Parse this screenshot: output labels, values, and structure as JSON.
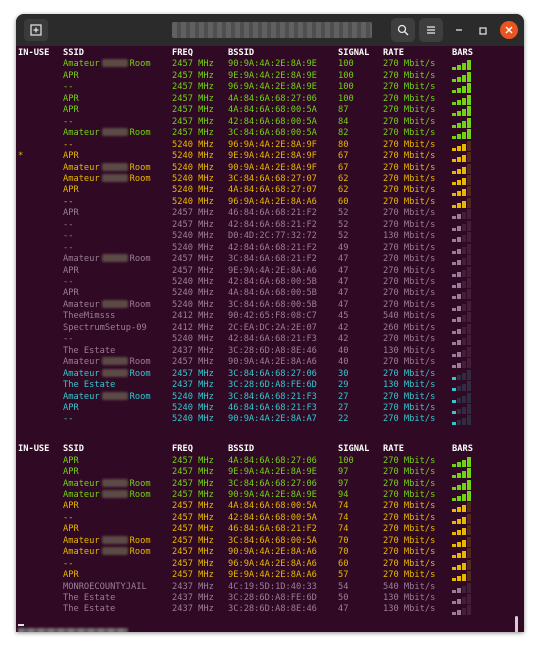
{
  "colors": {
    "background": "#300a24",
    "strong": "#73d216",
    "medium": "#e8b800",
    "weak": "#9c7d99",
    "very_weak": "#34c6cf"
  },
  "icons": {
    "new_tab": "tab-plus-icon",
    "search": "search-icon",
    "menu": "hamburger-menu-icon",
    "minimize": "minimize-icon",
    "maximize": "maximize-icon",
    "close": "close-icon"
  },
  "headers": {
    "in_use": "IN-USE",
    "ssid": "SSID",
    "freq": "FREQ",
    "bssid": "BSSID",
    "signal": "SIGNAL",
    "rate": "RATE",
    "bars": "BARS"
  },
  "scan1": [
    {
      "in_use": "",
      "ssid_a": "Amateur",
      "ssid_b": "Room",
      "redacted": true,
      "freq": "2457 MHz",
      "bssid": "90:9A:4A:2E:8A:9E",
      "signal": "100",
      "rate": "270 Mbit/s",
      "bars": 4,
      "color": "g"
    },
    {
      "in_use": "",
      "ssid_a": "APR",
      "ssid_b": "",
      "redacted": false,
      "freq": "2457 MHz",
      "bssid": "9E:9A:4A:2E:8A:9E",
      "signal": "100",
      "rate": "270 Mbit/s",
      "bars": 4,
      "color": "g"
    },
    {
      "in_use": "",
      "ssid_a": "--",
      "ssid_b": "",
      "redacted": false,
      "freq": "2457 MHz",
      "bssid": "96:9A:4A:2E:8A:9E",
      "signal": "100",
      "rate": "270 Mbit/s",
      "bars": 4,
      "color": "g"
    },
    {
      "in_use": "",
      "ssid_a": "APR",
      "ssid_b": "",
      "redacted": false,
      "freq": "2457 MHz",
      "bssid": "4A:84:6A:68:27:06",
      "signal": "100",
      "rate": "270 Mbit/s",
      "bars": 4,
      "color": "g"
    },
    {
      "in_use": "",
      "ssid_a": "APR",
      "ssid_b": "",
      "redacted": false,
      "freq": "2457 MHz",
      "bssid": "4A:84:6A:68:00:5A",
      "signal": "87",
      "rate": "270 Mbit/s",
      "bars": 4,
      "color": "g"
    },
    {
      "in_use": "",
      "ssid_a": "--",
      "ssid_b": "",
      "redacted": false,
      "freq": "2457 MHz",
      "bssid": "42:84:6A:68:00:5A",
      "signal": "84",
      "rate": "270 Mbit/s",
      "bars": 4,
      "color": "g"
    },
    {
      "in_use": "",
      "ssid_a": "Amateur",
      "ssid_b": "Room",
      "redacted": true,
      "freq": "2457 MHz",
      "bssid": "3C:84:6A:68:00:5A",
      "signal": "82",
      "rate": "270 Mbit/s",
      "bars": 4,
      "color": "g"
    },
    {
      "in_use": "",
      "ssid_a": "--",
      "ssid_b": "",
      "redacted": false,
      "freq": "5240 MHz",
      "bssid": "96:9A:4A:2E:8A:9F",
      "signal": "80",
      "rate": "270 Mbit/s",
      "bars": 3,
      "color": "y"
    },
    {
      "in_use": "*",
      "ssid_a": "APR",
      "ssid_b": "",
      "redacted": false,
      "freq": "5240 MHz",
      "bssid": "9E:9A:4A:2E:8A:9F",
      "signal": "67",
      "rate": "270 Mbit/s",
      "bars": 3,
      "color": "y"
    },
    {
      "in_use": "",
      "ssid_a": "Amateur",
      "ssid_b": "Room",
      "redacted": true,
      "freq": "5240 MHz",
      "bssid": "90:9A:4A:2E:8A:9F",
      "signal": "67",
      "rate": "270 Mbit/s",
      "bars": 3,
      "color": "y"
    },
    {
      "in_use": "",
      "ssid_a": "Amateur",
      "ssid_b": "Room",
      "redacted": true,
      "freq": "5240 MHz",
      "bssid": "3C:84:6A:68:27:07",
      "signal": "62",
      "rate": "270 Mbit/s",
      "bars": 3,
      "color": "y"
    },
    {
      "in_use": "",
      "ssid_a": "APR",
      "ssid_b": "",
      "redacted": false,
      "freq": "5240 MHz",
      "bssid": "4A:84:6A:68:27:07",
      "signal": "62",
      "rate": "270 Mbit/s",
      "bars": 3,
      "color": "y"
    },
    {
      "in_use": "",
      "ssid_a": "--",
      "ssid_b": "",
      "redacted": false,
      "freq": "5240 MHz",
      "bssid": "96:9A:4A:2E:8A:A6",
      "signal": "60",
      "rate": "270 Mbit/s",
      "bars": 3,
      "color": "y"
    },
    {
      "in_use": "",
      "ssid_a": "APR",
      "ssid_b": "",
      "redacted": false,
      "freq": "2457 MHz",
      "bssid": "46:84:6A:68:21:F2",
      "signal": "52",
      "rate": "270 Mbit/s",
      "bars": 2,
      "color": "m"
    },
    {
      "in_use": "",
      "ssid_a": "--",
      "ssid_b": "",
      "redacted": false,
      "freq": "2457 MHz",
      "bssid": "42:84:6A:68:21:F2",
      "signal": "52",
      "rate": "270 Mbit/s",
      "bars": 2,
      "color": "m"
    },
    {
      "in_use": "",
      "ssid_a": "--",
      "ssid_b": "",
      "redacted": false,
      "freq": "5240 MHz",
      "bssid": "D0:4D:2C:77:32:72",
      "signal": "52",
      "rate": "130 Mbit/s",
      "bars": 2,
      "color": "m"
    },
    {
      "in_use": "",
      "ssid_a": "--",
      "ssid_b": "",
      "redacted": false,
      "freq": "5240 MHz",
      "bssid": "42:84:6A:68:21:F2",
      "signal": "49",
      "rate": "270 Mbit/s",
      "bars": 2,
      "color": "m"
    },
    {
      "in_use": "",
      "ssid_a": "Amateur",
      "ssid_b": "Room",
      "redacted": true,
      "freq": "2457 MHz",
      "bssid": "3C:84:6A:68:21:F2",
      "signal": "47",
      "rate": "270 Mbit/s",
      "bars": 2,
      "color": "m"
    },
    {
      "in_use": "",
      "ssid_a": "APR",
      "ssid_b": "",
      "redacted": false,
      "freq": "2457 MHz",
      "bssid": "9E:9A:4A:2E:8A:A6",
      "signal": "47",
      "rate": "270 Mbit/s",
      "bars": 2,
      "color": "m"
    },
    {
      "in_use": "",
      "ssid_a": "--",
      "ssid_b": "",
      "redacted": false,
      "freq": "5240 MHz",
      "bssid": "42:84:6A:68:00:5B",
      "signal": "47",
      "rate": "270 Mbit/s",
      "bars": 2,
      "color": "m"
    },
    {
      "in_use": "",
      "ssid_a": "APR",
      "ssid_b": "",
      "redacted": false,
      "freq": "5240 MHz",
      "bssid": "4A:84:6A:68:00:5B",
      "signal": "47",
      "rate": "270 Mbit/s",
      "bars": 2,
      "color": "m"
    },
    {
      "in_use": "",
      "ssid_a": "Amateur",
      "ssid_b": "Room",
      "redacted": true,
      "freq": "5240 MHz",
      "bssid": "3C:84:6A:68:00:5B",
      "signal": "47",
      "rate": "270 Mbit/s",
      "bars": 2,
      "color": "m"
    },
    {
      "in_use": "",
      "ssid_a": "TheeMimsss",
      "ssid_b": "",
      "redacted": false,
      "freq": "2412 MHz",
      "bssid": "90:42:65:F8:08:C7",
      "signal": "45",
      "rate": "540 Mbit/s",
      "bars": 2,
      "color": "m"
    },
    {
      "in_use": "",
      "ssid_a": "SpectrumSetup-09",
      "ssid_b": "",
      "redacted": false,
      "freq": "2412 MHz",
      "bssid": "2C:EA:DC:2A:2E:07",
      "signal": "42",
      "rate": "260 Mbit/s",
      "bars": 2,
      "color": "m"
    },
    {
      "in_use": "",
      "ssid_a": "--",
      "ssid_b": "",
      "redacted": false,
      "freq": "5240 MHz",
      "bssid": "42:84:6A:68:21:F3",
      "signal": "42",
      "rate": "270 Mbit/s",
      "bars": 2,
      "color": "m"
    },
    {
      "in_use": "",
      "ssid_a": "The Estate",
      "ssid_b": "",
      "redacted": false,
      "freq": "2437 MHz",
      "bssid": "3C:28:6D:A8:8E:46",
      "signal": "40",
      "rate": "130 Mbit/s",
      "bars": 2,
      "color": "m"
    },
    {
      "in_use": "",
      "ssid_a": "Amateur",
      "ssid_b": "Room",
      "redacted": true,
      "freq": "2457 MHz",
      "bssid": "90:9A:4A:2E:8A:A6",
      "signal": "40",
      "rate": "270 Mbit/s",
      "bars": 2,
      "color": "m"
    },
    {
      "in_use": "",
      "ssid_a": "Amateur",
      "ssid_b": "Room",
      "redacted": true,
      "freq": "2457 MHz",
      "bssid": "3C:84:6A:68:27:06",
      "signal": "30",
      "rate": "270 Mbit/s",
      "bars": 1,
      "color": "cy"
    },
    {
      "in_use": "",
      "ssid_a": "The Estate",
      "ssid_b": "",
      "redacted": false,
      "freq": "2437 MHz",
      "bssid": "3C:28:6D:A8:FE:6D",
      "signal": "29",
      "rate": "130 Mbit/s",
      "bars": 1,
      "color": "cy"
    },
    {
      "in_use": "",
      "ssid_a": "Amateur",
      "ssid_b": "Room",
      "redacted": true,
      "freq": "5240 MHz",
      "bssid": "3C:84:6A:68:21:F3",
      "signal": "27",
      "rate": "270 Mbit/s",
      "bars": 1,
      "color": "cy"
    },
    {
      "in_use": "",
      "ssid_a": "APR",
      "ssid_b": "",
      "redacted": false,
      "freq": "5240 MHz",
      "bssid": "46:84:6A:68:21:F3",
      "signal": "27",
      "rate": "270 Mbit/s",
      "bars": 1,
      "color": "cy"
    },
    {
      "in_use": "",
      "ssid_a": "--",
      "ssid_b": "",
      "redacted": false,
      "freq": "5240 MHz",
      "bssid": "90:9A:4A:2E:8A:A7",
      "signal": "22",
      "rate": "270 Mbit/s",
      "bars": 1,
      "color": "cy"
    }
  ],
  "scan2": [
    {
      "in_use": "",
      "ssid_a": "APR",
      "ssid_b": "",
      "redacted": false,
      "freq": "2457 MHz",
      "bssid": "4A:84:6A:68:27:06",
      "signal": "100",
      "rate": "270 Mbit/s",
      "bars": 4,
      "color": "g"
    },
    {
      "in_use": "",
      "ssid_a": "APR",
      "ssid_b": "",
      "redacted": false,
      "freq": "2457 MHz",
      "bssid": "9E:9A:4A:2E:8A:9E",
      "signal": "97",
      "rate": "270 Mbit/s",
      "bars": 4,
      "color": "g"
    },
    {
      "in_use": "",
      "ssid_a": "Amateur",
      "ssid_b": "Room",
      "redacted": true,
      "freq": "2457 MHz",
      "bssid": "3C:84:6A:68:27:06",
      "signal": "97",
      "rate": "270 Mbit/s",
      "bars": 4,
      "color": "g"
    },
    {
      "in_use": "",
      "ssid_a": "Amateur",
      "ssid_b": "Room",
      "redacted": true,
      "freq": "2457 MHz",
      "bssid": "90:9A:4A:2E:8A:9E",
      "signal": "94",
      "rate": "270 Mbit/s",
      "bars": 4,
      "color": "g"
    },
    {
      "in_use": "",
      "ssid_a": "APR",
      "ssid_b": "",
      "redacted": false,
      "freq": "2457 MHz",
      "bssid": "4A:84:6A:68:00:5A",
      "signal": "74",
      "rate": "270 Mbit/s",
      "bars": 3,
      "color": "y"
    },
    {
      "in_use": "",
      "ssid_a": "--",
      "ssid_b": "",
      "redacted": false,
      "freq": "2457 MHz",
      "bssid": "42:84:6A:68:00:5A",
      "signal": "74",
      "rate": "270 Mbit/s",
      "bars": 3,
      "color": "y"
    },
    {
      "in_use": "",
      "ssid_a": "APR",
      "ssid_b": "",
      "redacted": false,
      "freq": "2457 MHz",
      "bssid": "46:84:6A:68:21:F2",
      "signal": "74",
      "rate": "270 Mbit/s",
      "bars": 3,
      "color": "y"
    },
    {
      "in_use": "",
      "ssid_a": "Amateur",
      "ssid_b": "Room",
      "redacted": true,
      "freq": "2457 MHz",
      "bssid": "3C:84:6A:68:00:5A",
      "signal": "70",
      "rate": "270 Mbit/s",
      "bars": 3,
      "color": "y"
    },
    {
      "in_use": "",
      "ssid_a": "Amateur",
      "ssid_b": "Room",
      "redacted": true,
      "freq": "2457 MHz",
      "bssid": "90:9A:4A:2E:8A:A6",
      "signal": "70",
      "rate": "270 Mbit/s",
      "bars": 3,
      "color": "y"
    },
    {
      "in_use": "",
      "ssid_a": "--",
      "ssid_b": "",
      "redacted": false,
      "freq": "2457 MHz",
      "bssid": "96:9A:4A:2E:8A:A6",
      "signal": "60",
      "rate": "270 Mbit/s",
      "bars": 3,
      "color": "y"
    },
    {
      "in_use": "",
      "ssid_a": "APR",
      "ssid_b": "",
      "redacted": false,
      "freq": "2457 MHz",
      "bssid": "9E:9A:4A:2E:8A:A6",
      "signal": "57",
      "rate": "270 Mbit/s",
      "bars": 3,
      "color": "y"
    },
    {
      "in_use": "",
      "ssid_a": "MONROECOUNTYJAIL",
      "ssid_b": "",
      "redacted": false,
      "freq": "2437 MHz",
      "bssid": "4C:19:5D:1D:40:33",
      "signal": "54",
      "rate": "540 Mbit/s",
      "bars": 2,
      "color": "m"
    },
    {
      "in_use": "",
      "ssid_a": "The Estate",
      "ssid_b": "",
      "redacted": false,
      "freq": "2437 MHz",
      "bssid": "3C:28:6D:A8:FE:6D",
      "signal": "50",
      "rate": "130 Mbit/s",
      "bars": 2,
      "color": "m"
    },
    {
      "in_use": "",
      "ssid_a": "The Estate",
      "ssid_b": "",
      "redacted": false,
      "freq": "2437 MHz",
      "bssid": "3C:28:6D:A8:8E:46",
      "signal": "47",
      "rate": "130 Mbit/s",
      "bars": 2,
      "color": "m"
    }
  ]
}
